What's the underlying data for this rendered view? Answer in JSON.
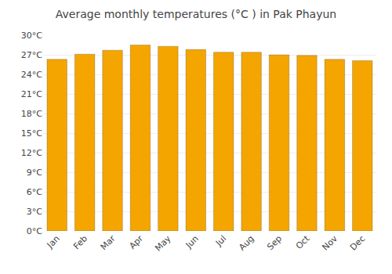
{
  "chart_data": {
    "type": "bar",
    "title": "Average monthly temperatures (°C ) in Pak Phayun",
    "categories": [
      "Jan",
      "Feb",
      "Mar",
      "Apr",
      "May",
      "Jun",
      "Jul",
      "Aug",
      "Sep",
      "Oct",
      "Nov",
      "Dec"
    ],
    "values": [
      26.3,
      27.1,
      27.7,
      28.5,
      28.3,
      27.8,
      27.4,
      27.4,
      27.0,
      26.9,
      26.3,
      26.1
    ],
    "color": "#F5A500",
    "ylim": [
      0,
      30
    ],
    "yticks": [
      {
        "value": 0,
        "label": "0°C"
      },
      {
        "value": 3,
        "label": "3°C"
      },
      {
        "value": 6,
        "label": "6°C"
      },
      {
        "value": 9,
        "label": "9°C"
      },
      {
        "value": 12,
        "label": "12°C"
      },
      {
        "value": 15,
        "label": "15°C"
      },
      {
        "value": 18,
        "label": "18°C"
      },
      {
        "value": 21,
        "label": "21°C"
      },
      {
        "value": 24,
        "label": "24°C"
      },
      {
        "value": 27,
        "label": "27°C"
      },
      {
        "value": 30,
        "label": "30°C"
      }
    ],
    "grid": true
  }
}
